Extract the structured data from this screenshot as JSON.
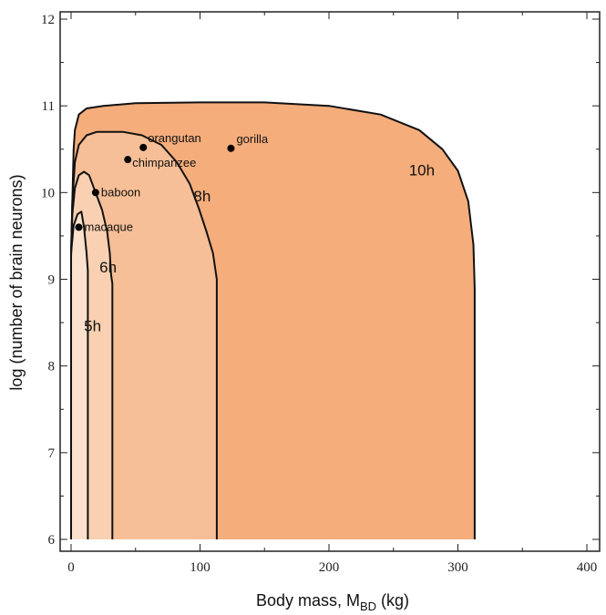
{
  "chart_data": {
    "type": "area",
    "xlabel": "Body mass, M",
    "xlabel_subscript": "BD",
    "xlabel_unit": " (kg)",
    "ylabel": "log (number of brain neurons)",
    "xlim": [
      0,
      410
    ],
    "ylim": [
      5.95,
      12.15
    ],
    "xticks": [
      0,
      100,
      200,
      300,
      400
    ],
    "yticks": [
      6,
      7,
      8,
      9,
      10,
      11,
      12
    ],
    "grid": false,
    "colors": {
      "h10": "#f5ad7b",
      "h8": "#f7bf97",
      "h6": "#f9d0b1",
      "h5": "#fbe0cc",
      "outline": "#111111",
      "frame": "#222222"
    },
    "regions": [
      {
        "name": "10h",
        "label_x": 262,
        "label_y": 10.2,
        "boundary": [
          [
            0,
            6
          ],
          [
            0,
            9.3
          ],
          [
            1,
            9.9
          ],
          [
            2,
            10.5
          ],
          [
            3,
            10.72
          ],
          [
            6,
            10.9
          ],
          [
            12,
            10.97
          ],
          [
            25,
            11.0
          ],
          [
            50,
            11.03
          ],
          [
            100,
            11.04
          ],
          [
            150,
            11.04
          ],
          [
            200,
            11.0
          ],
          [
            240,
            10.9
          ],
          [
            270,
            10.72
          ],
          [
            288,
            10.5
          ],
          [
            300,
            10.25
          ],
          [
            308,
            9.9
          ],
          [
            312,
            9.4
          ],
          [
            313,
            8.9
          ],
          [
            313,
            7.5
          ],
          [
            313,
            6
          ]
        ]
      },
      {
        "name": "8h",
        "label_x": 95,
        "label_y": 9.9,
        "boundary": [
          [
            0,
            6
          ],
          [
            0,
            9.25
          ],
          [
            1,
            9.9
          ],
          [
            3,
            10.35
          ],
          [
            6,
            10.55
          ],
          [
            12,
            10.66
          ],
          [
            20,
            10.7
          ],
          [
            40,
            10.7
          ],
          [
            55,
            10.66
          ],
          [
            70,
            10.55
          ],
          [
            82,
            10.35
          ],
          [
            92,
            10.1
          ],
          [
            99,
            9.82
          ],
          [
            105,
            9.55
          ],
          [
            110,
            9.3
          ],
          [
            112,
            9.1
          ],
          [
            113,
            9.0
          ],
          [
            113,
            7.5
          ],
          [
            113,
            6
          ]
        ]
      },
      {
        "name": "6h",
        "label_x": 22,
        "label_y": 9.08,
        "boundary": [
          [
            0,
            6
          ],
          [
            0,
            9.3
          ],
          [
            1,
            9.75
          ],
          [
            3,
            10.05
          ],
          [
            6,
            10.2
          ],
          [
            10,
            10.24
          ],
          [
            14,
            10.2
          ],
          [
            19,
            10.0
          ],
          [
            24,
            9.8
          ],
          [
            28,
            9.55
          ],
          [
            30,
            9.3
          ],
          [
            31,
            9.05
          ],
          [
            32,
            8.95
          ],
          [
            32,
            7.5
          ],
          [
            32,
            6
          ]
        ]
      },
      {
        "name": "5h",
        "label_x": 10,
        "label_y": 8.4,
        "boundary": [
          [
            0,
            6
          ],
          [
            0,
            9.3
          ],
          [
            2,
            9.62
          ],
          [
            5,
            9.75
          ],
          [
            8,
            9.78
          ],
          [
            10,
            9.6
          ],
          [
            11,
            9.45
          ],
          [
            12,
            9.3
          ],
          [
            13,
            9.1
          ],
          [
            13,
            7.5
          ],
          [
            13,
            6
          ]
        ]
      }
    ],
    "points": [
      {
        "label": "macaque",
        "x": 6,
        "y": 9.6
      },
      {
        "label": "baboon",
        "x": 19,
        "y": 10.0
      },
      {
        "label": "chimpanzee",
        "x": 44,
        "y": 10.38
      },
      {
        "label": "orangutan",
        "x": 56,
        "y": 10.52
      },
      {
        "label": "gorilla",
        "x": 124,
        "y": 10.51
      }
    ]
  }
}
